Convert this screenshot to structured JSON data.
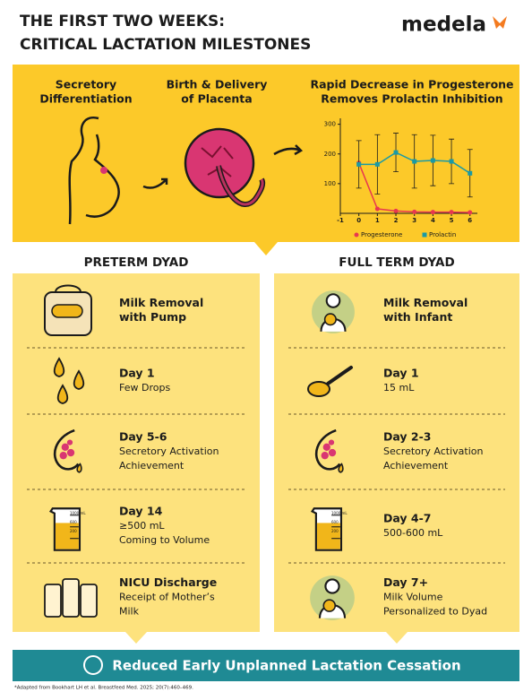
{
  "header": {
    "title_lines": [
      "THE FIRST TWO WEEKS:",
      "CRITICAL LACTATION MILESTONES"
    ],
    "logo": "medela"
  },
  "stages": [
    {
      "label_lines": [
        "Secretory",
        "Differentiation"
      ]
    },
    {
      "label_lines": [
        "Birth & Delivery",
        "of Placenta"
      ]
    },
    {
      "label_lines": [
        "Rapid Decrease in Progesterone",
        "Removes Prolactin Inhibition"
      ]
    }
  ],
  "chart_data": {
    "type": "line",
    "x": [
      0,
      1,
      2,
      3,
      4,
      5,
      6
    ],
    "series": [
      {
        "name": "Progesterone",
        "color": "#e8384f",
        "marker": "circle",
        "values": [
          170,
          15,
          8,
          5,
          4,
          4,
          3
        ]
      },
      {
        "name": "Prolactin",
        "color": "#1a9aa5",
        "marker": "square",
        "values": [
          165,
          165,
          205,
          175,
          178,
          175,
          135
        ],
        "errors": [
          80,
          100,
          65,
          90,
          85,
          75,
          80
        ]
      }
    ],
    "xlim": [
      -1,
      6.4
    ],
    "xticks": [
      -1,
      0,
      1,
      2,
      3,
      4,
      5,
      6
    ],
    "ylim": [
      0,
      320
    ],
    "yticks": [
      100,
      200,
      300
    ],
    "grid": false,
    "legend": "bottom"
  },
  "beaker_labels": [
    "1000 mL",
    "600",
    "200"
  ],
  "columns": [
    {
      "title": "PRETERM DYAD",
      "items": [
        {
          "title_lines": [
            "Milk Removal",
            "with Pump"
          ],
          "text_lines": []
        },
        {
          "title_lines": [
            "Day 1"
          ],
          "text_lines": [
            "Few Drops"
          ]
        },
        {
          "title_lines": [
            "Day 5-6"
          ],
          "text_lines": [
            "Secretory Activation",
            "Achievement"
          ]
        },
        {
          "title_lines": [
            "Day 14"
          ],
          "text_lines": [
            "≥500 mL",
            "Coming to Volume"
          ]
        },
        {
          "title_lines": [
            "NICU Discharge"
          ],
          "text_lines": [
            "Receipt of Mother’s",
            "Milk"
          ]
        }
      ]
    },
    {
      "title": "FULL TERM DYAD",
      "items": [
        {
          "title_lines": [
            "Milk Removal",
            "with Infant"
          ],
          "text_lines": []
        },
        {
          "title_lines": [
            "Day 1"
          ],
          "text_lines": [
            "15 mL"
          ]
        },
        {
          "title_lines": [
            "Day 2-3"
          ],
          "text_lines": [
            "Secretory Activation",
            "Achievement"
          ]
        },
        {
          "title_lines": [
            "Day 4-7"
          ],
          "text_lines": [
            "500-600 mL"
          ]
        },
        {
          "title_lines": [
            "Day 7+"
          ],
          "text_lines": [
            "Milk Volume",
            "Personalized to Dyad"
          ]
        }
      ]
    }
  ],
  "banner": "Reduced Early Unplanned Lactation Cessation",
  "footnote": "*Adapted from Bookhart LH et al. Breastfeed Med. 2025; 20(7):460–469."
}
